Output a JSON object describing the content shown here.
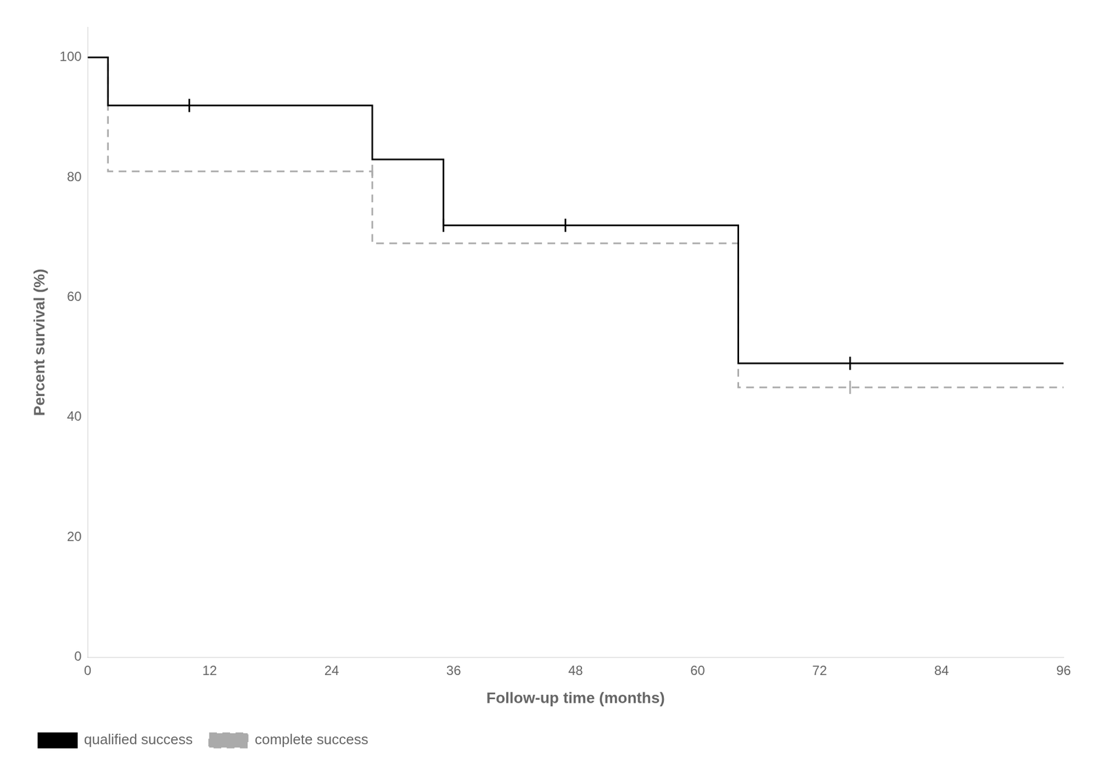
{
  "chart_data": {
    "type": "line",
    "xlabel": "Follow-up time (months)",
    "ylabel": "Percent survival (%)",
    "xlim": [
      0,
      96
    ],
    "ylim": [
      0,
      105
    ],
    "xticks": [
      0,
      12,
      24,
      36,
      48,
      60,
      72,
      84,
      96
    ],
    "yticks": [
      0,
      20,
      40,
      60,
      80,
      100
    ],
    "grid": false,
    "legend": "lower left",
    "series": [
      {
        "name": "qualified success",
        "color": "#000000",
        "line_style": "solid",
        "marker": "|",
        "x": [
          0,
          2,
          2,
          10,
          28,
          28,
          35,
          35,
          64,
          64,
          75,
          75,
          96
        ],
        "values": [
          100,
          100,
          92,
          92,
          92,
          83,
          83,
          72,
          72,
          49,
          49,
          49,
          49
        ],
        "censor_x": [
          10,
          35,
          47,
          75
        ],
        "censor_values": [
          92,
          72,
          72,
          49
        ]
      },
      {
        "name": "complete success",
        "color": "#aaaaaa",
        "line_style": "dashed",
        "marker": "|",
        "x": [
          0,
          2,
          2,
          28,
          28,
          35,
          35,
          64,
          64,
          75,
          75,
          96
        ],
        "values": [
          100,
          100,
          81,
          81,
          69,
          69,
          69,
          69,
          45,
          45,
          45,
          45
        ],
        "censor_x": [
          28,
          75
        ],
        "censor_values": [
          81,
          45
        ]
      }
    ]
  }
}
